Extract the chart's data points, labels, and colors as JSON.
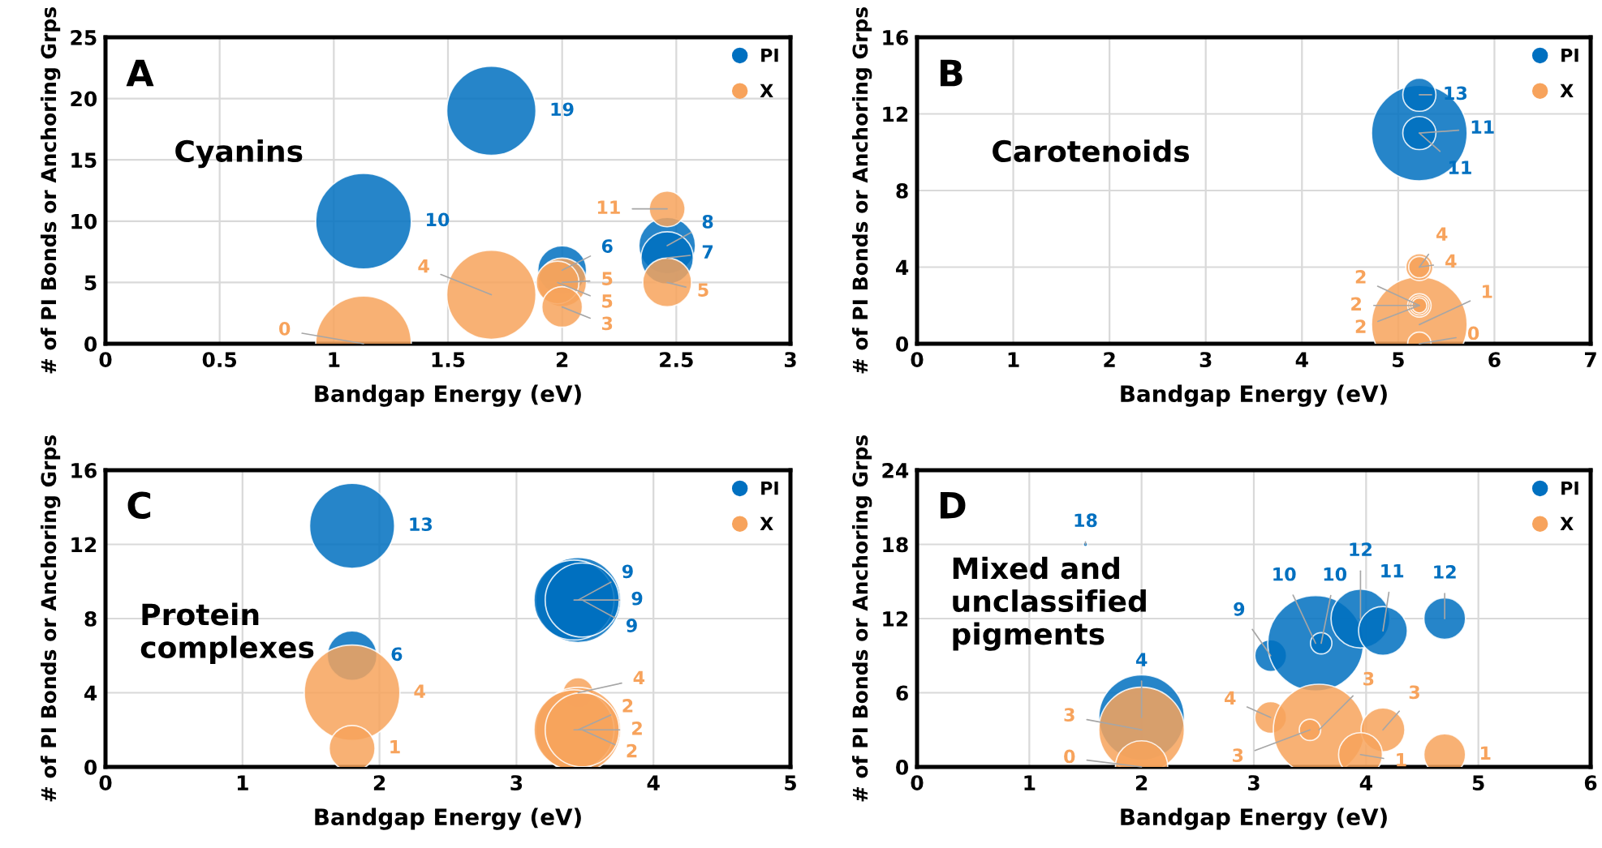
{
  "chart_data": [
    {
      "type": "bubble",
      "title": "A",
      "xlabel": "Bandgap Energy (eV)",
      "ylabel": "# of PI Bonds or Anchoring Grps",
      "annotations": [
        "Cyanins"
      ],
      "xlim": [
        0,
        3
      ],
      "ylim": [
        0,
        25
      ],
      "xticks": [
        0,
        0.5,
        1,
        1.5,
        2,
        2.5,
        3
      ],
      "yticks": [
        0,
        5,
        10,
        15,
        20,
        25
      ],
      "grid": true,
      "legend": "top right",
      "data_labels": true,
      "series": [
        {
          "name": "PI",
          "color": "#0070c0",
          "x": [
            1.69,
            1.13,
            2.0,
            2.46,
            2.46
          ],
          "values": [
            19,
            10,
            6,
            8,
            7
          ],
          "sizes": [
            0.87,
            1,
            0.26,
            0.35,
            0.3
          ]
        },
        {
          "name": "X",
          "color": "#f7a35c",
          "x": [
            1.13,
            1.69,
            2.0,
            1.98,
            2.0,
            2.46,
            2.46
          ],
          "values": [
            0,
            4,
            5,
            5,
            3,
            11,
            5
          ],
          "sizes": [
            1,
            0.87,
            0.26,
            0.2,
            0.18,
            0.14,
            0.26
          ]
        }
      ]
    },
    {
      "type": "bubble",
      "title": "B",
      "xlabel": "Bandgap Energy (eV)",
      "ylabel": "# of PI Bonds or Anchoring Grps",
      "annotations": [
        "Carotenoids"
      ],
      "xlim": [
        0,
        7
      ],
      "ylim": [
        0,
        16
      ],
      "xticks": [
        0,
        1,
        2,
        3,
        4,
        5,
        6,
        7
      ],
      "yticks": [
        0,
        4,
        8,
        12,
        16
      ],
      "grid": true,
      "legend": "top right",
      "data_labels": true,
      "series": [
        {
          "name": "PI",
          "color": "#0070c0",
          "x": [
            5.22,
            5.22,
            5.22
          ],
          "values": [
            11,
            13,
            11
          ],
          "sizes": [
            1,
            0.12,
            0.12
          ]
        },
        {
          "name": "X",
          "color": "#f7a35c",
          "x": [
            5.22,
            5.22,
            5.22,
            5.22,
            5.22,
            5.22,
            5.22
          ],
          "values": [
            1,
            4,
            4,
            2,
            2,
            2,
            0
          ],
          "sizes": [
            1,
            0.08,
            0.05,
            0.06,
            0.04,
            0.025,
            0.06
          ]
        }
      ]
    },
    {
      "type": "bubble",
      "title": "C",
      "xlabel": "Bandgap Energy (eV)",
      "ylabel": "# of PI Bonds or Anchoring Grps",
      "annotations": [
        "Protein\ncomplexes"
      ],
      "xlim": [
        0,
        5
      ],
      "ylim": [
        0,
        16
      ],
      "xticks": [
        0,
        1,
        2,
        3,
        4,
        5
      ],
      "yticks": [
        0,
        4,
        8,
        12,
        16
      ],
      "grid": true,
      "legend": "top right",
      "data_labels": true,
      "series": [
        {
          "name": "PI",
          "color": "#0070c0",
          "x": [
            1.8,
            1.8,
            3.45,
            3.42,
            3.48
          ],
          "values": [
            13,
            6,
            9,
            9,
            9
          ],
          "sizes": [
            0.79,
            0.27,
            0.79,
            0.7,
            0.6
          ]
        },
        {
          "name": "X",
          "color": "#f7a35c",
          "x": [
            1.8,
            1.8,
            3.45,
            3.45,
            3.42,
            3.48
          ],
          "values": [
            4,
            1,
            4,
            2,
            2,
            2
          ],
          "sizes": [
            1,
            0.23,
            0.1,
            0.79,
            0.7,
            0.6
          ]
        }
      ]
    },
    {
      "type": "bubble",
      "title": "D",
      "xlabel": "Bandgap Energy (eV)",
      "ylabel": "# of PI Bonds or Anchoring Grps",
      "annotations": [
        "Mixed and\nunclassified\npigments"
      ],
      "xlim": [
        0,
        6
      ],
      "ylim": [
        0,
        24
      ],
      "xticks": [
        0,
        1,
        2,
        3,
        4,
        5,
        6
      ],
      "yticks": [
        0,
        6,
        12,
        18,
        24
      ],
      "grid": true,
      "legend": "top right",
      "data_labels": true,
      "series": [
        {
          "name": "PI",
          "color": "#0070c0",
          "x": [
            1.5,
            2.0,
            3.15,
            3.55,
            3.6,
            3.95,
            4.15,
            4.7
          ],
          "values": [
            18,
            4,
            9,
            10,
            10,
            12,
            11,
            12
          ],
          "sizes": [
            0.002,
            0.8,
            0.11,
            1,
            0.05,
            0.38,
            0.26,
            0.19
          ]
        },
        {
          "name": "X",
          "color": "#f7a35c",
          "x": [
            2.0,
            2.0,
            3.15,
            3.58,
            3.5,
            4.15,
            3.95,
            4.7
          ],
          "values": [
            3,
            0,
            4,
            3,
            3,
            3,
            1,
            1
          ],
          "sizes": [
            0.8,
            0.3,
            0.11,
            0.91,
            0.05,
            0.21,
            0.21,
            0.19
          ]
        }
      ]
    }
  ]
}
